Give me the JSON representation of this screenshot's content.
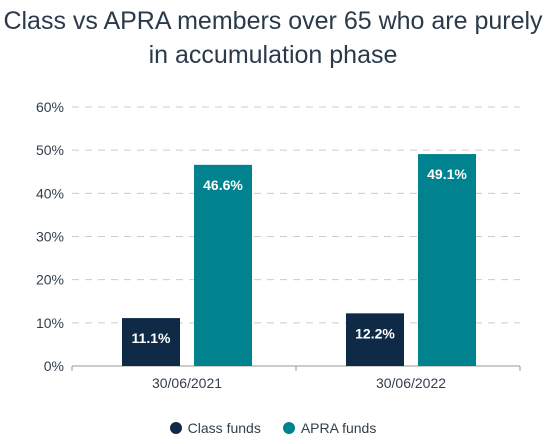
{
  "title_line1": "Class vs APRA members over 65 who are purely",
  "title_line2": "in accumulation phase",
  "colors": {
    "class": "#0f2a47",
    "apra": "#00838f",
    "grid": "#cccccc",
    "axis": "#9a9a9a"
  },
  "chart_data": {
    "type": "bar",
    "categories": [
      "30/06/2021",
      "30/06/2022"
    ],
    "series": [
      {
        "name": "Class funds",
        "values": [
          11.1,
          12.2
        ],
        "labels": [
          "11.1%",
          "12.2%"
        ]
      },
      {
        "name": "APRA funds",
        "values": [
          46.6,
          49.1
        ],
        "labels": [
          "46.6%",
          "49.1%"
        ]
      }
    ],
    "ylim": [
      0,
      60
    ],
    "yticks": [
      "0%",
      "10%",
      "20%",
      "30%",
      "40%",
      "50%",
      "60%"
    ],
    "grid": true,
    "legend": "bottom"
  }
}
